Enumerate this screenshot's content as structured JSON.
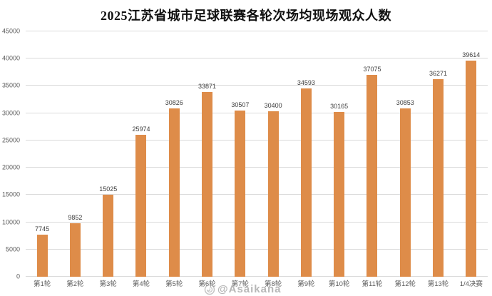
{
  "title": "2025江苏省城市足球联赛各轮次场均现场观众人数",
  "watermark": {
    "text": "@Asaikana"
  },
  "colors": {
    "bar": "#de8c49",
    "gridline": "#dadada",
    "title_text": "#111111",
    "axis_label": "#595959",
    "value_label": "#404040",
    "watermark": "#aaaaaa",
    "background": "#ffffff"
  },
  "chart_data": {
    "type": "bar",
    "title": "2025江苏省城市足球联赛各轮次场均现场观众人数",
    "categories": [
      "第1轮",
      "第2轮",
      "第3轮",
      "第4轮",
      "第5轮",
      "第6轮",
      "第7轮",
      "第8轮",
      "第9轮",
      "第10轮",
      "第11轮",
      "第12轮",
      "第13轮",
      "1/4决赛"
    ],
    "values": [
      7745,
      9852,
      15025,
      25974,
      30826,
      33871,
      30507,
      30400,
      34593,
      30165,
      37075,
      30853,
      36271,
      39614
    ],
    "xlabel": "",
    "ylabel": "",
    "ylim": [
      0,
      45000
    ],
    "yticks": [
      0,
      5000,
      10000,
      15000,
      20000,
      25000,
      30000,
      35000,
      40000,
      45000
    ],
    "grid": true,
    "legend": false,
    "data_labels": true
  }
}
